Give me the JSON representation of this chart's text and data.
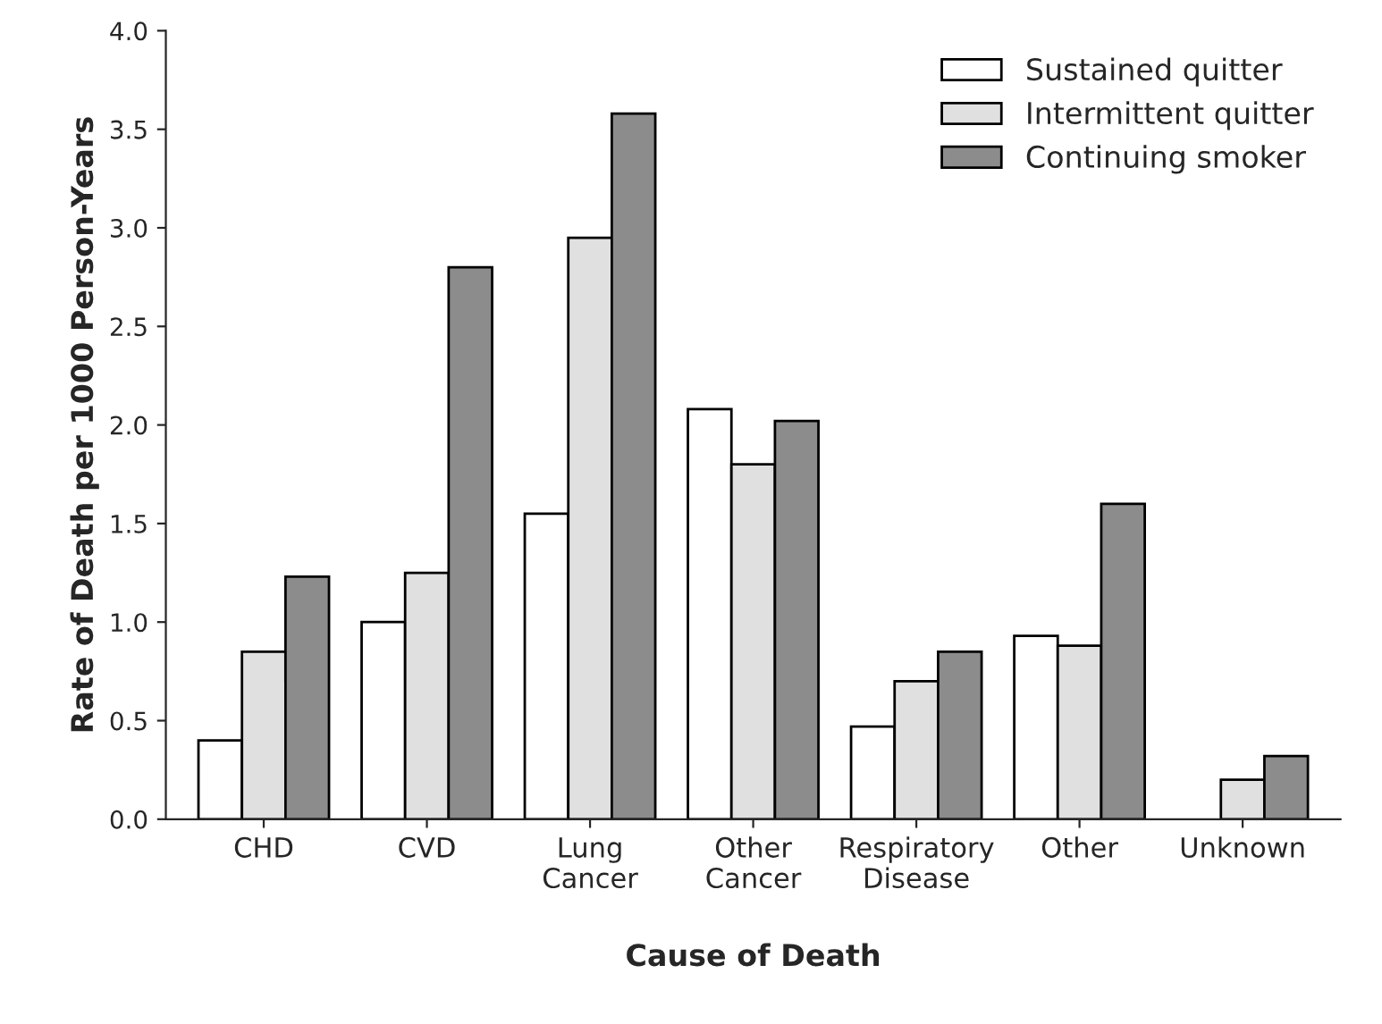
{
  "chart_data": {
    "type": "bar",
    "xlabel": "Cause of Death",
    "ylabel": "Rate of Death per 1000 Person-Years",
    "categories": [
      "CHD",
      "CVD",
      "Lung\nCancer",
      "Other\nCancer",
      "Respiratory\nDisease",
      "Other",
      "Unknown"
    ],
    "series": [
      {
        "name": "Sustained quitter",
        "color": "#ffffff",
        "values": [
          0.4,
          1.0,
          1.55,
          2.08,
          0.47,
          0.93,
          null
        ]
      },
      {
        "name": "Intermittent quitter",
        "color": "#e0e0e0",
        "values": [
          0.85,
          1.25,
          2.95,
          1.8,
          0.7,
          0.88,
          0.2
        ]
      },
      {
        "name": "Continuing smoker",
        "color": "#8c8c8c",
        "values": [
          1.23,
          2.8,
          3.58,
          2.02,
          0.85,
          1.6,
          0.32
        ]
      }
    ],
    "ylim": [
      0,
      4
    ],
    "yticks": [
      {
        "value": 0,
        "label": "0.0"
      },
      {
        "value": 0.5,
        "label": "0.5"
      },
      {
        "value": 1,
        "label": "1.0"
      },
      {
        "value": 1.5,
        "label": "1.5"
      },
      {
        "value": 2,
        "label": "2.0"
      },
      {
        "value": 2.5,
        "label": "2.5"
      },
      {
        "value": 3,
        "label": "3.0"
      },
      {
        "value": 3.5,
        "label": "3.5"
      },
      {
        "value": 4,
        "label": "4.0"
      }
    ],
    "grid": false,
    "legend": "top right"
  }
}
